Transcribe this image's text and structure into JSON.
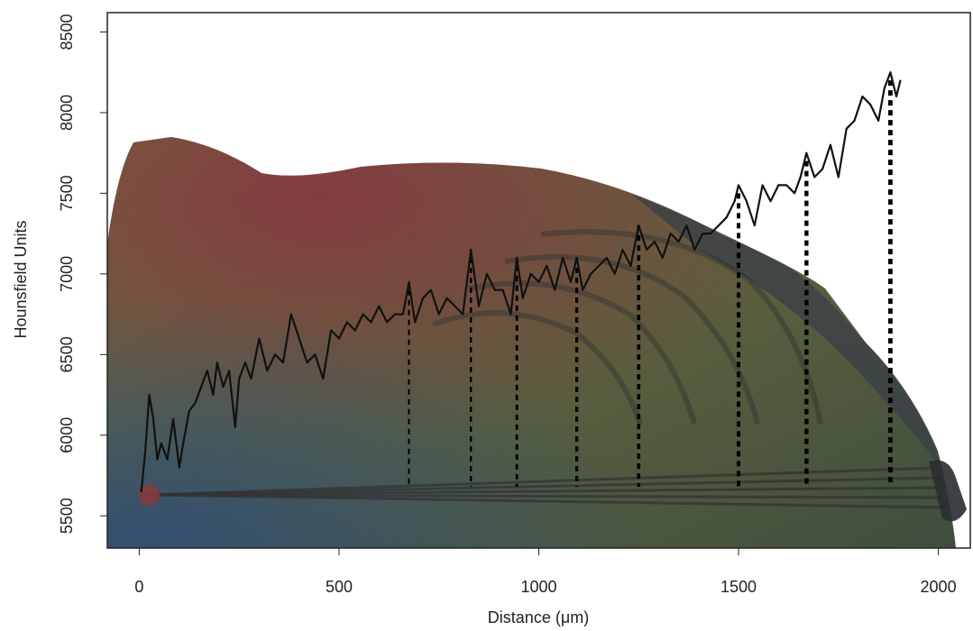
{
  "chart_data": {
    "type": "line",
    "xlabel": "Distance (μm)",
    "ylabel": "Hounsfield Units",
    "xlim": [
      -80,
      2080
    ],
    "ylim": [
      5300,
      8620
    ],
    "x_ticks": [
      0,
      500,
      1000,
      1500,
      2000
    ],
    "x_tick_labels": [
      "0",
      "500",
      "1000",
      "1500",
      "2000"
    ],
    "y_ticks": [
      5500,
      6000,
      6500,
      7000,
      7500,
      8000,
      8500
    ],
    "y_tick_labels": [
      "5500",
      "6000",
      "6500",
      "7000",
      "7500",
      "8000",
      "8500"
    ],
    "grid": false,
    "background": "microscope image of a cross-section with concentric growth bands",
    "series": [
      {
        "color": "#111111",
        "x": [
          5,
          15,
          25,
          35,
          45,
          55,
          70,
          85,
          100,
          110,
          125,
          140,
          155,
          170,
          185,
          195,
          210,
          225,
          240,
          250,
          265,
          280,
          300,
          320,
          340,
          360,
          380,
          400,
          420,
          440,
          460,
          480,
          500,
          520,
          540,
          560,
          580,
          600,
          620,
          640,
          660,
          675,
          690,
          710,
          730,
          750,
          770,
          790,
          810,
          830,
          850,
          870,
          890,
          910,
          930,
          945,
          960,
          980,
          1000,
          1020,
          1040,
          1060,
          1080,
          1095,
          1110,
          1130,
          1150,
          1170,
          1190,
          1210,
          1230,
          1250,
          1270,
          1290,
          1310,
          1330,
          1350,
          1370,
          1390,
          1410,
          1430,
          1450,
          1470,
          1490,
          1500,
          1520,
          1540,
          1560,
          1580,
          1600,
          1620,
          1640,
          1655,
          1670,
          1690,
          1710,
          1730,
          1750,
          1770,
          1790,
          1810,
          1830,
          1850,
          1865,
          1880,
          1895,
          1905
        ],
        "y": [
          5650,
          5900,
          6250,
          6100,
          5850,
          5950,
          5850,
          6100,
          5800,
          5950,
          6150,
          6200,
          6300,
          6400,
          6250,
          6450,
          6300,
          6400,
          6050,
          6350,
          6450,
          6350,
          6600,
          6400,
          6500,
          6450,
          6750,
          6600,
          6450,
          6500,
          6350,
          6650,
          6600,
          6700,
          6650,
          6750,
          6700,
          6800,
          6700,
          6750,
          6750,
          6950,
          6700,
          6850,
          6900,
          6750,
          6850,
          6800,
          6750,
          7150,
          6800,
          7000,
          6900,
          6900,
          6750,
          7100,
          6850,
          7000,
          6950,
          7050,
          6900,
          7100,
          6950,
          7100,
          6900,
          7000,
          7050,
          7100,
          7000,
          7150,
          7050,
          7300,
          7150,
          7200,
          7100,
          7250,
          7200,
          7300,
          7150,
          7250,
          7250,
          7300,
          7350,
          7450,
          7550,
          7450,
          7300,
          7550,
          7450,
          7550,
          7550,
          7500,
          7600,
          7750,
          7600,
          7650,
          7800,
          7600,
          7900,
          7950,
          8100,
          8050,
          7950,
          8150,
          8250,
          8100,
          8200
        ]
      }
    ],
    "dashed_markers": [
      {
        "x": 675,
        "y_top": 6900
      },
      {
        "x": 830,
        "y_top": 7100
      },
      {
        "x": 945,
        "y_top": 7050
      },
      {
        "x": 1095,
        "y_top": 7100
      },
      {
        "x": 1250,
        "y_top": 7300
      },
      {
        "x": 1500,
        "y_top": 7500
      },
      {
        "x": 1670,
        "y_top": 7700
      },
      {
        "x": 1880,
        "y_top": 8200
      }
    ],
    "dashed_marker_bottom": 5680
  }
}
